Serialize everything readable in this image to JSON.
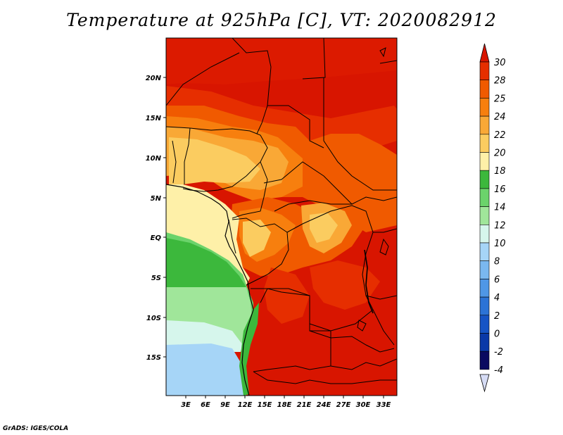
{
  "title": "Temperature at 925hPa [C], VT: 2020082912",
  "footer": "GrADS: IGES/COLA",
  "map": {
    "lat_labels": [
      "20N",
      "15N",
      "10N",
      "5N",
      "EQ",
      "5S",
      "10S",
      "15S"
    ],
    "lon_labels": [
      "3E",
      "6E",
      "9E",
      "12E",
      "15E",
      "18E",
      "21E",
      "24E",
      "27E",
      "30E",
      "33E"
    ]
  },
  "colorbar": {
    "levels": [
      "30",
      "28",
      "25",
      "24",
      "22",
      "20",
      "18",
      "16",
      "14",
      "12",
      "10",
      "8",
      "6",
      "4",
      "2",
      "0",
      "-2",
      "-4"
    ],
    "colors": [
      "#d81500",
      "#e62e00",
      "#f05a00",
      "#f77f0e",
      "#f9a836",
      "#fbcc60",
      "#fef0a8",
      "#3cb83c",
      "#6bd36b",
      "#a0e69a",
      "#d6f6ec",
      "#a6d5f7",
      "#7ab8f0",
      "#4f97e6",
      "#2c73d6",
      "#1654c5",
      "#0a39a8",
      "#0a0a60"
    ],
    "top_arrow_color": "#d81500",
    "bottom_arrow_color": "#d6dcf5"
  }
}
